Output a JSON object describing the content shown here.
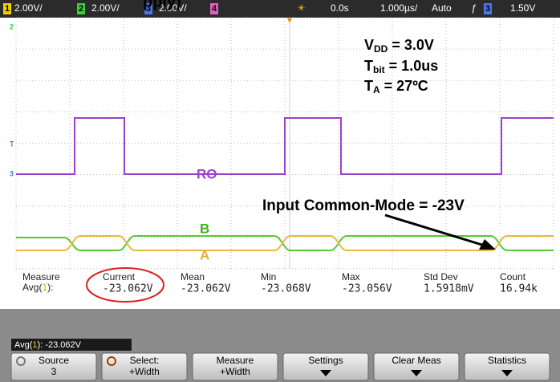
{
  "header": {
    "channels": [
      {
        "num": "1",
        "scale": "2.00V/"
      },
      {
        "num": "2",
        "scale": "2.00V/"
      },
      {
        "num": "3",
        "scale": "2.00V/"
      },
      {
        "num": "4"
      }
    ],
    "title_fragment": "pply)",
    "delay": "0.0s",
    "timebase": "1.000µs/",
    "mode": "Auto",
    "trigger_source": "3",
    "trigger_level": "1.50V"
  },
  "markers": {
    "ch2": "2",
    "trigger": "T",
    "ch3": "3"
  },
  "annotations": {
    "vdd": {
      "main": "V",
      "sub": "DD",
      "rest": " = 3.0V"
    },
    "tbit": {
      "main": "T",
      "sub": "bit",
      "rest": " = 1.0us"
    },
    "ta": {
      "main": "T",
      "sub": "A",
      "rest": "  = 27ºC"
    },
    "ro": "RO",
    "b": "B",
    "a": "A",
    "common_mode": "Input Common-Mode = -23V"
  },
  "measurements": {
    "label": "Measure",
    "avg": [
      "Avg(",
      "1",
      "):"
    ],
    "columns": [
      {
        "name": "Current",
        "value": "-23.062V"
      },
      {
        "name": "Mean",
        "value": "-23.062V"
      },
      {
        "name": "Min",
        "value": "-23.068V"
      },
      {
        "name": "Max",
        "value": "-23.056V"
      },
      {
        "name": "Std Dev",
        "value": "1.5918mV"
      },
      {
        "name": "Count",
        "value": "16.94k"
      }
    ]
  },
  "status": {
    "prefix": "Avg(",
    "ch": "1",
    "suffix": "): -23.062V"
  },
  "softkeys": [
    {
      "line1": "Source",
      "line2": "3"
    },
    {
      "line1": "Select:",
      "line2": "+Width"
    },
    {
      "line1": "Measure",
      "line2": "+Width"
    },
    {
      "line1": "Settings"
    },
    {
      "line1": "Clear Meas"
    },
    {
      "line1": "Statistics"
    }
  ]
}
